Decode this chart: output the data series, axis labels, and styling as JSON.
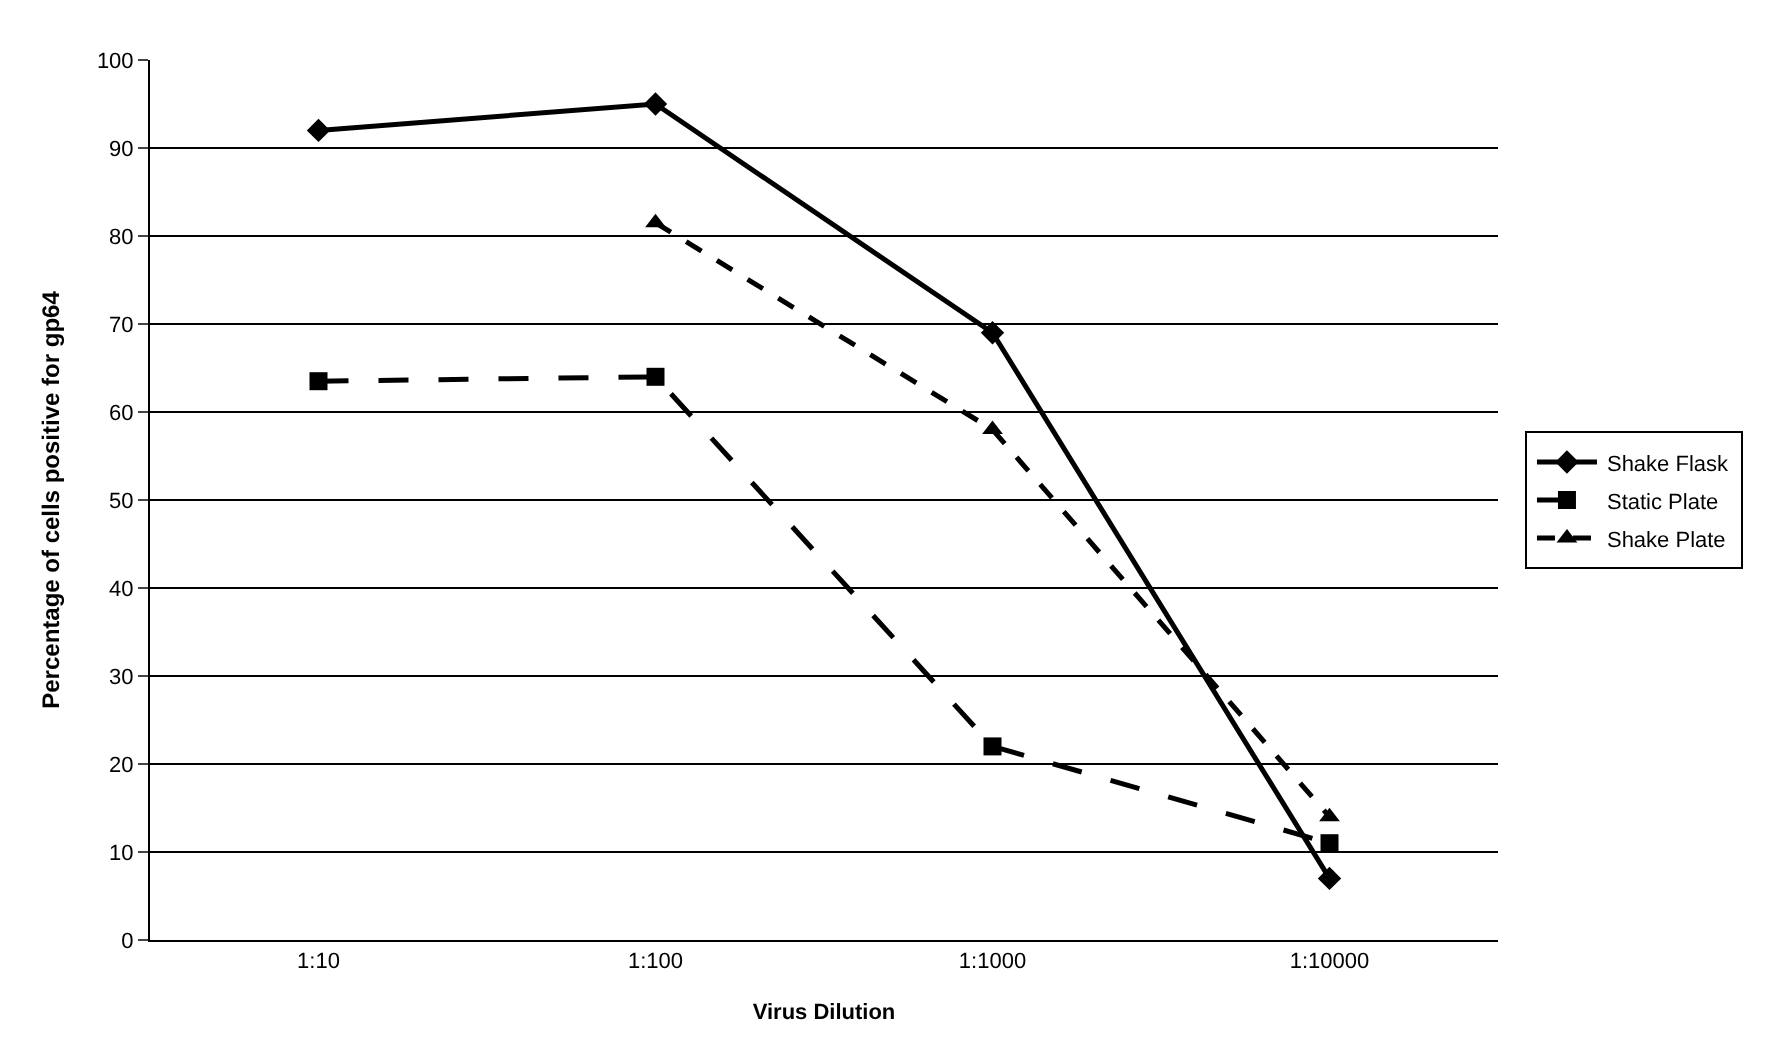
{
  "chart_data": {
    "type": "line",
    "xlabel": "Virus Dilution",
    "ylabel": "Percentage of cells positive for gp64",
    "categories": [
      "1:10",
      "1:100",
      "1:1000",
      "1:10000"
    ],
    "series": [
      {
        "name": "Shake Flask",
        "color": "#000000",
        "values": [
          92,
          95,
          69,
          7
        ],
        "marker": "diamond",
        "line_style": "solid"
      },
      {
        "name": "Static Plate",
        "color": "#000000",
        "values": [
          63.5,
          64,
          22,
          11
        ],
        "marker": "square",
        "line_style": "dashed"
      },
      {
        "name": "Shake Plate",
        "color": "#000000",
        "values": [
          null,
          81.5,
          58,
          14
        ],
        "marker": "triangle",
        "line_style": "dotted"
      }
    ],
    "ylim": [
      0,
      100
    ],
    "yticks": [
      0,
      10,
      20,
      30,
      40,
      50,
      60,
      70,
      80,
      90,
      100
    ],
    "grid": "y",
    "legend": "right"
  }
}
